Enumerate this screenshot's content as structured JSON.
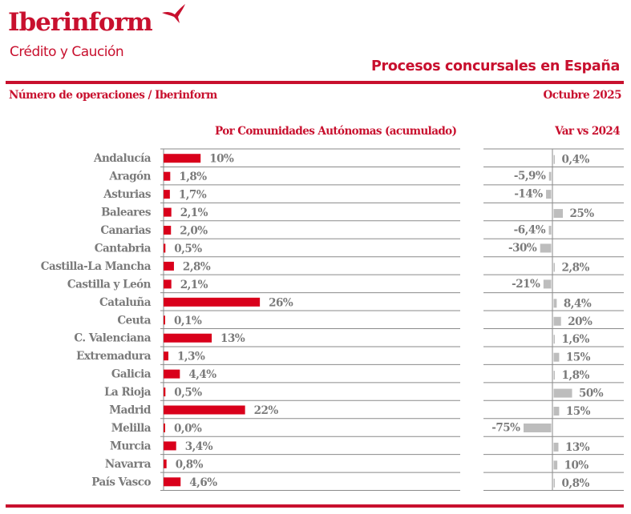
{
  "header": {
    "brand_name": "Iberinform",
    "brand_sub": "Crédito y Caución",
    "title": "Procesos concursales en España",
    "subtitle": "Número de operaciones / Iberinform",
    "date": "Octubre 2025",
    "logo_icon": "y-shaped-brand-mark-icon"
  },
  "colors": {
    "brand": "#c8102e",
    "primary_bar": "#d9001b",
    "variation_bar": "#bdbdbd",
    "text_gray": "#7a7a7a",
    "grid": "#8a8a8a"
  },
  "chart_data": [
    {
      "type": "bar",
      "orientation": "horizontal",
      "title": "Por Comunidades Autónomas (acumulado)",
      "xlabel": "",
      "ylabel": "",
      "unit": "%",
      "xlim": [
        0,
        80
      ],
      "categories": [
        "Andalucía",
        "Aragón",
        "Asturias",
        "Baleares",
        "Canarias",
        "Cantabria",
        "Castilla-La Mancha",
        "Castilla y León",
        "Cataluña",
        "Ceuta",
        "C. Valenciana",
        "Extremadura",
        "Galicia",
        "La Rioja",
        "Madrid",
        "Melilla",
        "Murcia",
        "Navarra",
        "País Vasco"
      ],
      "values": [
        10,
        1.8,
        1.7,
        2.1,
        2.0,
        0.5,
        2.8,
        2.1,
        26,
        0.1,
        13,
        1.3,
        4.4,
        0.5,
        22,
        0.0,
        3.4,
        0.8,
        4.6
      ],
      "labels": [
        "10%",
        "1,8%",
        "1,7%",
        "2,1%",
        "2,0%",
        "0,5%",
        "2,8%",
        "2,1%",
        "26%",
        "0,1%",
        "13%",
        "1,3%",
        "4,4%",
        "0,5%",
        "22%",
        "0,0%",
        "3,4%",
        "0,8%",
        "4,6%"
      ],
      "grid": "horizontal row separators"
    },
    {
      "type": "bar",
      "orientation": "horizontal",
      "title": "Var vs 2024",
      "unit": "%",
      "xlim": [
        -190,
        195
      ],
      "categories": [
        "Andalucía",
        "Aragón",
        "Asturias",
        "Baleares",
        "Canarias",
        "Cantabria",
        "Castilla-La Mancha",
        "Castilla y León",
        "Cataluña",
        "Ceuta",
        "C. Valenciana",
        "Extremadura",
        "Galicia",
        "La Rioja",
        "Madrid",
        "Melilla",
        "Murcia",
        "Navarra",
        "País Vasco"
      ],
      "values": [
        0.4,
        -5.9,
        -14,
        25,
        -6.4,
        -30,
        2.8,
        -21,
        8.4,
        20,
        1.6,
        15,
        1.8,
        50,
        15,
        -75,
        13,
        10,
        0.8
      ],
      "labels": [
        "0,4%",
        "-5,9%",
        "-14%",
        "25%",
        "-6,4%",
        "-30%",
        "2,8%",
        "-21%",
        "8,4%",
        "20%",
        "1,6%",
        "15%",
        "1,8%",
        "50%",
        "15%",
        "-75%",
        "13%",
        "10%",
        "0,8%"
      ],
      "grid": "horizontal row separators"
    }
  ]
}
